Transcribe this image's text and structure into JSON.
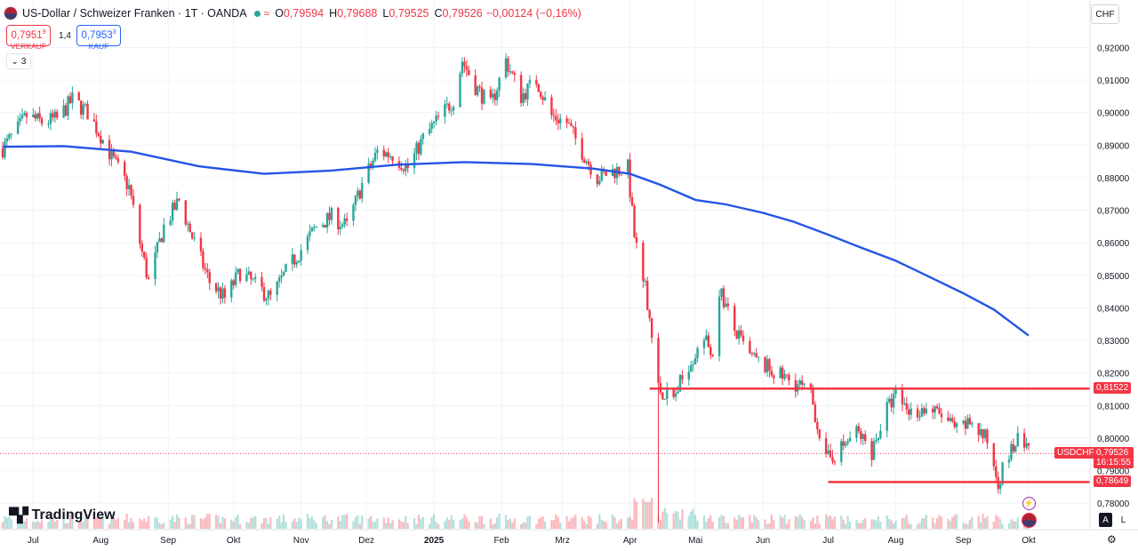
{
  "header": {
    "symbol": "US-Dollar / Schweizer Franken · 1T · OANDA",
    "o_label": "O",
    "o": "0,79594",
    "h_label": "H",
    "h": "0,79688",
    "l_label": "L",
    "l": "0,79525",
    "c_label": "C",
    "c": "0,79526",
    "change": "−0,00124 (−0,16%)",
    "wave_icon": "≈"
  },
  "trade": {
    "sell_price": "0,7951",
    "sell_sup": "9",
    "sell_label": "VERKAUF",
    "spread": "1,4",
    "buy_price": "0,7953",
    "buy_sup": "3",
    "buy_label": "KAUF"
  },
  "indicators_collapse": "3",
  "currency": "CHF",
  "logo_text": "TradingView",
  "buttons": {
    "auto": "A",
    "log": "L"
  },
  "colors": {
    "up": "#26a69a",
    "down": "#f23645",
    "ma": "#2454e6",
    "hline": "#f23645",
    "grid": "#f0f3fa"
  },
  "chart_data": {
    "type": "candlestick",
    "symbol": "USDCHF",
    "ylim": [
      0.7735,
      0.9275
    ],
    "y_ticks": [
      "0,78000",
      "0,79000",
      "0,80000",
      "0,81000",
      "0,82000",
      "0,83000",
      "0,84000",
      "0,85000",
      "0,86000",
      "0,87000",
      "0,88000",
      "0,89000",
      "0,90000",
      "0,91000",
      "0,92000"
    ],
    "x_labels": [
      "Jul",
      "Aug",
      "Sep",
      "Okt",
      "Nov",
      "Dez",
      "2025",
      "Feb",
      "Mrz",
      "Apr",
      "Mai",
      "Jun",
      "Jul",
      "Aug",
      "Sep",
      "Okt"
    ],
    "close_path": [
      [
        "2024-06-17",
        0.889
      ],
      [
        "2024-06-24",
        0.895
      ],
      [
        "2024-06-28",
        0.899
      ],
      [
        "2024-07-05",
        0.897
      ],
      [
        "2024-07-12",
        0.898
      ],
      [
        "2024-07-19",
        0.904
      ],
      [
        "2024-07-26",
        0.9
      ],
      [
        "2024-08-01",
        0.893
      ],
      [
        "2024-08-07",
        0.885
      ],
      [
        "2024-08-14",
        0.877
      ],
      [
        "2024-08-19",
        0.86
      ],
      [
        "2024-08-23",
        0.848
      ],
      [
        "2024-08-30",
        0.865
      ],
      [
        "2024-09-06",
        0.873
      ],
      [
        "2024-09-13",
        0.86
      ],
      [
        "2024-09-20",
        0.848
      ],
      [
        "2024-09-27",
        0.843
      ],
      [
        "2024-10-04",
        0.851
      ],
      [
        "2024-10-11",
        0.847
      ],
      [
        "2024-10-18",
        0.843
      ],
      [
        "2024-10-25",
        0.851
      ],
      [
        "2024-11-01",
        0.858
      ],
      [
        "2024-11-08",
        0.865
      ],
      [
        "2024-11-15",
        0.868
      ],
      [
        "2024-11-22",
        0.865
      ],
      [
        "2024-11-29",
        0.878
      ],
      [
        "2024-12-06",
        0.888
      ],
      [
        "2024-12-13",
        0.887
      ],
      [
        "2024-12-20",
        0.883
      ],
      [
        "2024-12-27",
        0.892
      ],
      [
        "2025-01-03",
        0.898
      ],
      [
        "2025-01-10",
        0.904
      ],
      [
        "2025-01-14",
        0.916
      ],
      [
        "2025-01-20",
        0.908
      ],
      [
        "2025-01-27",
        0.902
      ],
      [
        "2025-02-03",
        0.916
      ],
      [
        "2025-02-10",
        0.905
      ],
      [
        "2025-02-17",
        0.91
      ],
      [
        "2025-02-24",
        0.899
      ],
      [
        "2025-03-03",
        0.897
      ],
      [
        "2025-03-10",
        0.888
      ],
      [
        "2025-03-17",
        0.88
      ],
      [
        "2025-03-24",
        0.882
      ],
      [
        "2025-03-31",
        0.883
      ],
      [
        "2025-04-03",
        0.862
      ],
      [
        "2025-04-07",
        0.851
      ],
      [
        "2025-04-11",
        0.833
      ],
      [
        "2025-04-14",
        0.815
      ],
      [
        "2025-04-21",
        0.812
      ],
      [
        "2025-04-28",
        0.823
      ],
      [
        "2025-05-05",
        0.83
      ],
      [
        "2025-05-09",
        0.826
      ],
      [
        "2025-05-12",
        0.846
      ],
      [
        "2025-05-19",
        0.833
      ],
      [
        "2025-05-26",
        0.825
      ],
      [
        "2025-06-02",
        0.822
      ],
      [
        "2025-06-09",
        0.819
      ],
      [
        "2025-06-16",
        0.817
      ],
      [
        "2025-06-23",
        0.813
      ],
      [
        "2025-06-30",
        0.793
      ],
      [
        "2025-07-07",
        0.797
      ],
      [
        "2025-07-14",
        0.802
      ],
      [
        "2025-07-21",
        0.796
      ],
      [
        "2025-07-28",
        0.809
      ],
      [
        "2025-08-01",
        0.813
      ],
      [
        "2025-08-08",
        0.808
      ],
      [
        "2025-08-15",
        0.809
      ],
      [
        "2025-08-22",
        0.807
      ],
      [
        "2025-08-29",
        0.802
      ],
      [
        "2025-09-05",
        0.805
      ],
      [
        "2025-09-12",
        0.799
      ],
      [
        "2025-09-17",
        0.787
      ],
      [
        "2025-09-22",
        0.795
      ],
      [
        "2025-09-26",
        0.799
      ],
      [
        "2025-10-01",
        0.7953
      ]
    ],
    "ma_path": [
      [
        "2024-06-17",
        0.8895
      ],
      [
        "2024-07-15",
        0.8897
      ],
      [
        "2024-08-15",
        0.888
      ],
      [
        "2024-09-15",
        0.8835
      ],
      [
        "2024-10-15",
        0.8812
      ],
      [
        "2024-11-15",
        0.8822
      ],
      [
        "2024-12-15",
        0.884
      ],
      [
        "2025-01-15",
        0.8848
      ],
      [
        "2025-02-15",
        0.8842
      ],
      [
        "2025-03-15",
        0.8828
      ],
      [
        "2025-04-01",
        0.8812
      ],
      [
        "2025-04-15",
        0.8778
      ],
      [
        "2025-05-01",
        0.8732
      ],
      [
        "2025-05-15",
        0.8718
      ],
      [
        "2025-06-01",
        0.8692
      ],
      [
        "2025-06-15",
        0.8665
      ],
      [
        "2025-07-01",
        0.8625
      ],
      [
        "2025-07-15",
        0.8588
      ],
      [
        "2025-08-01",
        0.8545
      ],
      [
        "2025-08-15",
        0.85
      ],
      [
        "2025-09-01",
        0.8445
      ],
      [
        "2025-09-15",
        0.8395
      ],
      [
        "2025-10-01",
        0.8315
      ]
    ],
    "moving_average_period": "",
    "horizontal_lines": [
      {
        "label": "0,81522",
        "value": 0.81522,
        "from": "2025-04-10"
      },
      {
        "label": "0,78649",
        "value": 0.78649,
        "from": "2025-07-01"
      }
    ],
    "last_price": {
      "symbol": "USDCHF",
      "value": "0,79526",
      "countdown": "16:15:55",
      "level": 0.79526
    },
    "volume_relative": "estimated, max spike around early April 2025",
    "grid": true
  }
}
